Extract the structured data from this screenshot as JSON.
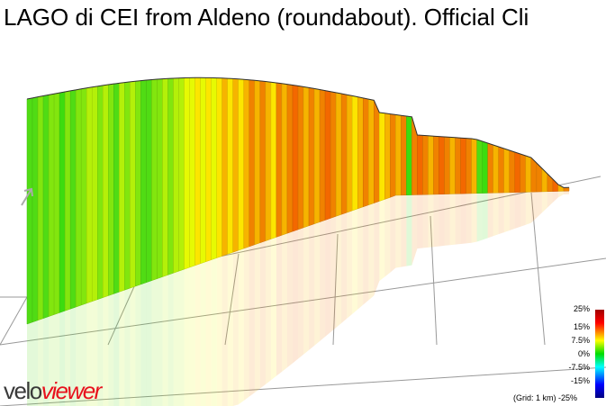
{
  "title": "LAGO di CEI from Aldeno (roundabout). Official Cli",
  "logo": {
    "part1": "velo",
    "part2": "viewer"
  },
  "colors": {
    "flat": "#3bd61a",
    "steep": "#e06000",
    "grid": "#999999"
  },
  "chart_data": {
    "type": "area",
    "subtype": "3d-gradient-profile",
    "grid": true,
    "grid_spacing_label": "(Grid: 1 km)",
    "color_scale": {
      "ticks": [
        "25%",
        "15%",
        "7.5%",
        "0%",
        "-7.5%",
        "-15%",
        "-25%"
      ]
    },
    "segments_grade_percent": [
      4,
      4,
      5,
      4,
      5,
      5,
      3,
      5,
      4,
      5,
      5,
      6,
      6,
      5,
      6,
      5,
      4,
      6,
      5,
      6,
      5,
      4,
      4,
      5,
      5,
      6,
      5,
      6,
      6,
      7,
      7,
      8,
      7,
      8,
      7,
      8,
      9,
      8,
      9,
      8,
      9,
      10,
      9,
      10,
      9,
      8,
      10,
      9,
      10,
      11,
      10,
      9,
      10,
      9,
      10,
      11,
      10,
      9,
      10,
      9,
      8,
      9,
      10,
      9,
      10,
      8,
      9,
      10,
      9,
      10,
      3,
      10,
      11,
      10,
      9,
      10,
      11,
      10,
      9,
      10,
      11,
      10,
      9,
      4,
      3,
      10,
      9,
      10,
      9,
      10,
      11,
      10,
      9,
      10,
      10,
      9,
      10,
      11,
      9,
      10
    ]
  }
}
